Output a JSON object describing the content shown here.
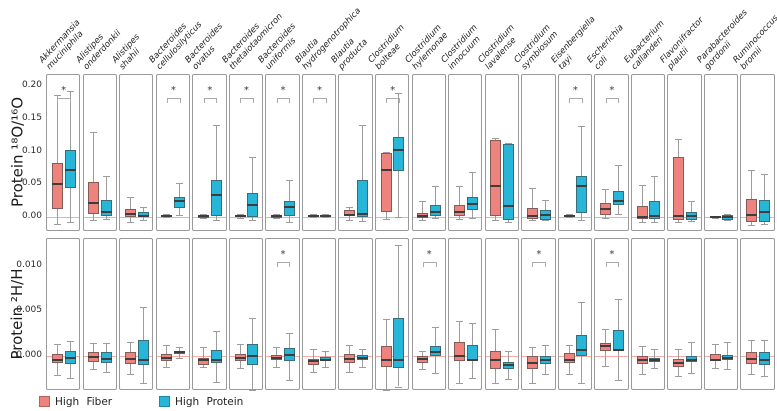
{
  "figure": {
    "sig_marker": "*",
    "colors": {
      "high_fiber": "#ED837C",
      "high_protein": "#27B6D7",
      "zero_line": "#F6ABA3",
      "panel_border": "#9A9A9A",
      "whisker": "#9C9C9C",
      "median": "#3D3D3D"
    },
    "legend": {
      "items": [
        {
          "label": "High Fiber",
          "color": "#ED837C"
        },
        {
          "label": "High Protein",
          "color": "#27B6D7"
        }
      ]
    }
  },
  "chart_data": {
    "type": "boxplot",
    "groups": [
      "High Fiber",
      "High Protein"
    ],
    "group_colors": [
      "#ED837C",
      "#27B6D7"
    ],
    "box_value_order": [
      "whisker_low",
      "q1",
      "median",
      "q3",
      "whisker_high"
    ],
    "categories": [
      "Akkermansia muciniphila",
      "Alistipes onderdonkii",
      "Alistipes shahii",
      "Bacteroides cellulosilyticus",
      "Bacteroides ovatus",
      "Bacteroides thetaiotaomicron",
      "Bacteroides uniformis",
      "Blautia hydrogenotrophica",
      "Blautia producta",
      "Clostridium bolteae",
      "Clostridium hylemonae",
      "Clostridium innocuum",
      "Clostridium lavalense",
      "Clostridium symbiosum",
      "Eisenbergiella tayi",
      "Escherichia coli",
      "Eubacterium callanderi",
      "Flavonifractor plautii",
      "Parabacteroides gordonii",
      "Ruminococcus bromii"
    ],
    "rows": [
      {
        "ylabel": "Protein  ¹⁸O/¹⁶O",
        "yticks": [
          {
            "label": "0.00",
            "value": 0.0
          },
          {
            "label": "0.05",
            "value": 0.05
          },
          {
            "label": "0.10",
            "value": 0.1
          },
          {
            "label": "0.15",
            "value": 0.15
          },
          {
            "label": "0.20",
            "value": 0.2
          }
        ],
        "ylim": [
          -0.0229,
          0.2168
        ],
        "boxes": [
          {
            "species": "Akkermansia muciniphila",
            "significant": true,
            "high_fiber": [
              -0.011,
              0.012,
              0.05,
              0.082,
              0.187
            ],
            "high_protein": [
              -0.007,
              0.044,
              0.072,
              0.103,
              0.193
            ]
          },
          {
            "species": "Alistipes onderdonkii",
            "significant": false,
            "high_fiber": [
              -0.005,
              0.004,
              0.022,
              0.053,
              0.13
            ],
            "high_protein": [
              -0.003,
              0.002,
              0.007,
              0.026,
              0.063
            ]
          },
          {
            "species": "Alistipes shahii",
            "significant": false,
            "high_fiber": [
              -0.008,
              0.0,
              0.005,
              0.012,
              0.03
            ],
            "high_protein": [
              -0.005,
              0.0,
              0.002,
              0.007,
              0.015
            ]
          },
          {
            "species": "Bacteroides cellulosilyticus",
            "significant": true,
            "high_fiber": [
              0.0,
              0.001,
              0.002,
              0.003,
              0.005
            ],
            "high_protein": [
              0.003,
              0.013,
              0.024,
              0.031,
              0.052
            ]
          },
          {
            "species": "Bacteroides ovatus",
            "significant": true,
            "high_fiber": [
              -0.001,
              0.0,
              0.001,
              0.002,
              0.004
            ],
            "high_protein": [
              -0.005,
              0.001,
              0.034,
              0.057,
              0.141
            ]
          },
          {
            "species": "Bacteroides thetaiotaomicron",
            "significant": true,
            "high_fiber": [
              -0.001,
              0.0,
              0.002,
              0.003,
              0.005
            ],
            "high_protein": [
              -0.004,
              0.0,
              0.019,
              0.037,
              0.091
            ]
          },
          {
            "species": "Bacteroides uniformis",
            "significant": true,
            "high_fiber": [
              -0.001,
              0.0,
              0.001,
              0.002,
              0.004
            ],
            "high_protein": [
              -0.008,
              0.001,
              0.015,
              0.024,
              0.057
            ]
          },
          {
            "species": "Blautia hydrogenotrophica",
            "significant": true,
            "high_fiber": [
              0.0,
              0.001,
              0.002,
              0.003,
              0.004
            ],
            "high_protein": [
              0.0,
              0.001,
              0.002,
              0.003,
              0.004
            ]
          },
          {
            "species": "Blautia producta",
            "significant": false,
            "high_fiber": [
              -0.004,
              0.001,
              0.003,
              0.01,
              0.016
            ],
            "high_protein": [
              -0.006,
              0.0,
              0.004,
              0.057,
              0.14
            ]
          },
          {
            "species": "Clostridium bolteae",
            "significant": true,
            "high_fiber": [
              -0.003,
              0.008,
              0.072,
              0.097,
              0.1
            ],
            "high_protein": [
              0.0,
              0.07,
              0.102,
              0.122,
              0.19
            ]
          },
          {
            "species": "Clostridium hylemonae",
            "significant": false,
            "high_fiber": [
              -0.004,
              -0.002,
              0.002,
              0.006,
              0.024
            ],
            "high_protein": [
              -0.002,
              0.001,
              0.008,
              0.019,
              0.047
            ]
          },
          {
            "species": "Clostridium innocuum",
            "significant": false,
            "high_fiber": [
              -0.003,
              0.001,
              0.008,
              0.019,
              0.047
            ],
            "high_protein": [
              -0.002,
              0.011,
              0.02,
              0.031,
              0.069
            ]
          },
          {
            "species": "Clostridium lavalense",
            "significant": false,
            "high_fiber": [
              -0.005,
              0.001,
              0.048,
              0.118,
              0.12
            ],
            "high_protein": [
              -0.007,
              -0.004,
              0.017,
              0.112,
              0.113
            ]
          },
          {
            "species": "Clostridium symbiosum",
            "significant": false,
            "high_fiber": [
              -0.005,
              -0.003,
              0.002,
              0.013,
              0.044
            ],
            "high_protein": [
              -0.005,
              -0.004,
              0.003,
              0.011,
              0.026
            ]
          },
          {
            "species": "Eisenbergiella tayi",
            "significant": true,
            "high_fiber": [
              0.0,
              0.001,
              0.002,
              0.003,
              0.004
            ],
            "high_protein": [
              -0.004,
              0.006,
              0.047,
              0.062,
              0.139
            ]
          },
          {
            "species": "Escherichia coli",
            "significant": true,
            "high_fiber": [
              -0.002,
              0.003,
              0.012,
              0.021,
              0.042
            ],
            "high_protein": [
              0.004,
              0.019,
              0.024,
              0.039,
              0.079
            ]
          },
          {
            "species": "Eubacterium callanderi",
            "significant": false,
            "high_fiber": [
              -0.008,
              -0.003,
              0.0,
              0.017,
              0.049
            ],
            "high_protein": [
              -0.007,
              -0.003,
              0.001,
              0.025,
              0.063
            ]
          },
          {
            "species": "Flavonifractor plautii",
            "significant": false,
            "high_fiber": [
              -0.007,
              -0.004,
              0.001,
              0.091,
              0.119
            ],
            "high_protein": [
              -0.006,
              -0.004,
              0.002,
              0.008,
              0.024
            ]
          },
          {
            "species": "Parabacteroides gordonii",
            "significant": false,
            "high_fiber": [
              -0.001,
              0.0,
              0.0,
              0.001,
              0.002
            ],
            "high_protein": [
              -0.005,
              -0.004,
              0.0,
              0.003,
              0.004
            ]
          },
          {
            "species": "Ruminococcus bromii",
            "significant": false,
            "high_fiber": [
              -0.012,
              -0.008,
              0.003,
              0.027,
              0.072
            ],
            "high_protein": [
              -0.01,
              -0.007,
              0.007,
              0.026,
              0.066
            ]
          }
        ]
      },
      {
        "ylabel": "Protein  ²H/H",
        "yticks": [
          {
            "label": "0.000",
            "value": 0.0
          },
          {
            "label": "0.005",
            "value": 0.005
          },
          {
            "label": "0.010",
            "value": 0.01
          }
        ],
        "ylim": [
          -0.0039,
          0.013
        ],
        "boxes": [
          {
            "species": "Akkermansia muciniphila",
            "significant": false,
            "high_fiber": [
              -0.0021,
              -0.0008,
              -0.0004,
              0.0002,
              0.0013
            ],
            "high_protein": [
              -0.0025,
              -0.0009,
              -0.0002,
              0.0006,
              0.0017
            ]
          },
          {
            "species": "Alistipes onderdonkii",
            "significant": false,
            "high_fiber": [
              -0.0015,
              -0.0007,
              -0.0001,
              0.0004,
              0.0014
            ],
            "high_protein": [
              -0.0018,
              -0.0008,
              -0.0003,
              0.0004,
              0.0014
            ]
          },
          {
            "species": "Alistipes shahii",
            "significant": false,
            "high_fiber": [
              -0.002,
              -0.0009,
              -0.0003,
              0.0004,
              0.0015
            ],
            "high_protein": [
              -0.003,
              -0.001,
              -0.0005,
              0.0018,
              0.0054
            ]
          },
          {
            "species": "Bacteroides cellulosilyticus",
            "significant": false,
            "high_fiber": [
              -0.0012,
              -0.0006,
              -0.0002,
              0.0002,
              0.0012
            ],
            "high_protein": [
              -0.0002,
              0.0002,
              0.0004,
              0.0006,
              0.001
            ]
          },
          {
            "species": "Bacteroides ovatus",
            "significant": false,
            "high_fiber": [
              -0.0012,
              -0.001,
              -0.0005,
              -0.0002,
              0.001
            ],
            "high_protein": [
              -0.0029,
              -0.0008,
              -0.0004,
              0.0007,
              0.0028
            ]
          },
          {
            "species": "Bacteroides thetaiotaomicron",
            "significant": false,
            "high_fiber": [
              -0.0013,
              -0.0006,
              -0.0002,
              0.0002,
              0.0013
            ],
            "high_protein": [
              -0.0038,
              -0.001,
              0.0,
              0.0013,
              0.0042
            ]
          },
          {
            "species": "Bacteroides uniformis",
            "significant": true,
            "high_fiber": [
              -0.0012,
              -0.0005,
              -0.0002,
              0.0001,
              0.001
            ],
            "high_protein": [
              -0.0027,
              -0.0006,
              0.0001,
              0.0009,
              0.0026
            ]
          },
          {
            "species": "Blautia hydrogenotrophica",
            "significant": false,
            "high_fiber": [
              -0.0018,
              -0.001,
              -0.0006,
              -0.0003,
              0.0008
            ],
            "high_protein": [
              -0.0012,
              -0.0006,
              -0.0004,
              -0.0001,
              0.0006
            ]
          },
          {
            "species": "Blautia producta",
            "significant": false,
            "high_fiber": [
              -0.0018,
              -0.0008,
              -0.0003,
              0.0002,
              0.0012
            ],
            "high_protein": [
              -0.0012,
              -0.0005,
              -0.0002,
              0.0001,
              0.0008
            ]
          },
          {
            "species": "Clostridium bolteae",
            "significant": false,
            "high_fiber": [
              -0.0038,
              -0.0012,
              -0.0004,
              0.0011,
              0.0041
            ],
            "high_protein": [
              -0.0034,
              -0.0013,
              -0.0005,
              0.0042,
              0.0123
            ]
          },
          {
            "species": "Clostridium hylemonae",
            "significant": true,
            "high_fiber": [
              -0.0015,
              -0.0008,
              -0.0003,
              0.0,
              0.0006
            ],
            "high_protein": [
              -0.0019,
              0.0,
              0.0004,
              0.0011,
              0.0032
            ]
          },
          {
            "species": "Clostridium innocuum",
            "significant": false,
            "high_fiber": [
              -0.003,
              -0.0006,
              0.0,
              0.0015,
              0.0039
            ],
            "high_protein": [
              -0.0025,
              -0.0006,
              -0.0004,
              0.0012,
              0.0037
            ]
          },
          {
            "species": "Clostridium lavalense",
            "significant": false,
            "high_fiber": [
              -0.003,
              -0.0014,
              -0.0004,
              0.0005,
              0.003
            ],
            "high_protein": [
              -0.0026,
              -0.0015,
              -0.001,
              -0.0007,
              0.0005
            ]
          },
          {
            "species": "Clostridium symbiosum",
            "significant": true,
            "high_fiber": [
              -0.003,
              -0.0014,
              -0.0008,
              0.0,
              0.001
            ],
            "high_protein": [
              -0.002,
              -0.0009,
              -0.0004,
              0.0,
              0.0012
            ]
          },
          {
            "species": "Eisenbergiella tayi",
            "significant": false,
            "high_fiber": [
              -0.002,
              -0.0008,
              -0.0004,
              0.0003,
              0.0012
            ],
            "high_protein": [
              -0.003,
              0.0,
              0.0007,
              0.0023,
              0.006
            ]
          },
          {
            "species": "Escherichia coli",
            "significant": true,
            "high_fiber": [
              -0.0011,
              0.0005,
              0.0011,
              0.0014,
              0.003
            ],
            "high_protein": [
              -0.0027,
              0.0005,
              0.0007,
              0.0029,
              0.0063
            ]
          },
          {
            "species": "Eubacterium callanderi",
            "significant": false,
            "high_fiber": [
              -0.002,
              -0.0009,
              -0.0004,
              0.0,
              0.0011
            ],
            "high_protein": [
              -0.0013,
              -0.0007,
              -0.0005,
              -0.0002,
              0.0008
            ]
          },
          {
            "species": "Flavonifractor plautii",
            "significant": false,
            "high_fiber": [
              -0.0022,
              -0.0012,
              -0.0008,
              -0.0003,
              0.0008
            ],
            "high_protein": [
              -0.0019,
              -0.0007,
              -0.0004,
              0.0,
              0.0015
            ]
          },
          {
            "species": "Parabacteroides gordonii",
            "significant": false,
            "high_fiber": [
              -0.0013,
              -0.0006,
              -0.0004,
              0.0002,
              0.0013
            ],
            "high_protein": [
              -0.0015,
              -0.0005,
              -0.0002,
              0.0001,
              0.0015
            ]
          },
          {
            "species": "Ruminococcus bromii",
            "significant": false,
            "high_fiber": [
              -0.002,
              -0.0009,
              -0.0003,
              0.0004,
              0.0018
            ],
            "high_protein": [
              -0.0022,
              -0.001,
              -0.0005,
              0.0004,
              0.0018
            ]
          }
        ]
      }
    ]
  }
}
